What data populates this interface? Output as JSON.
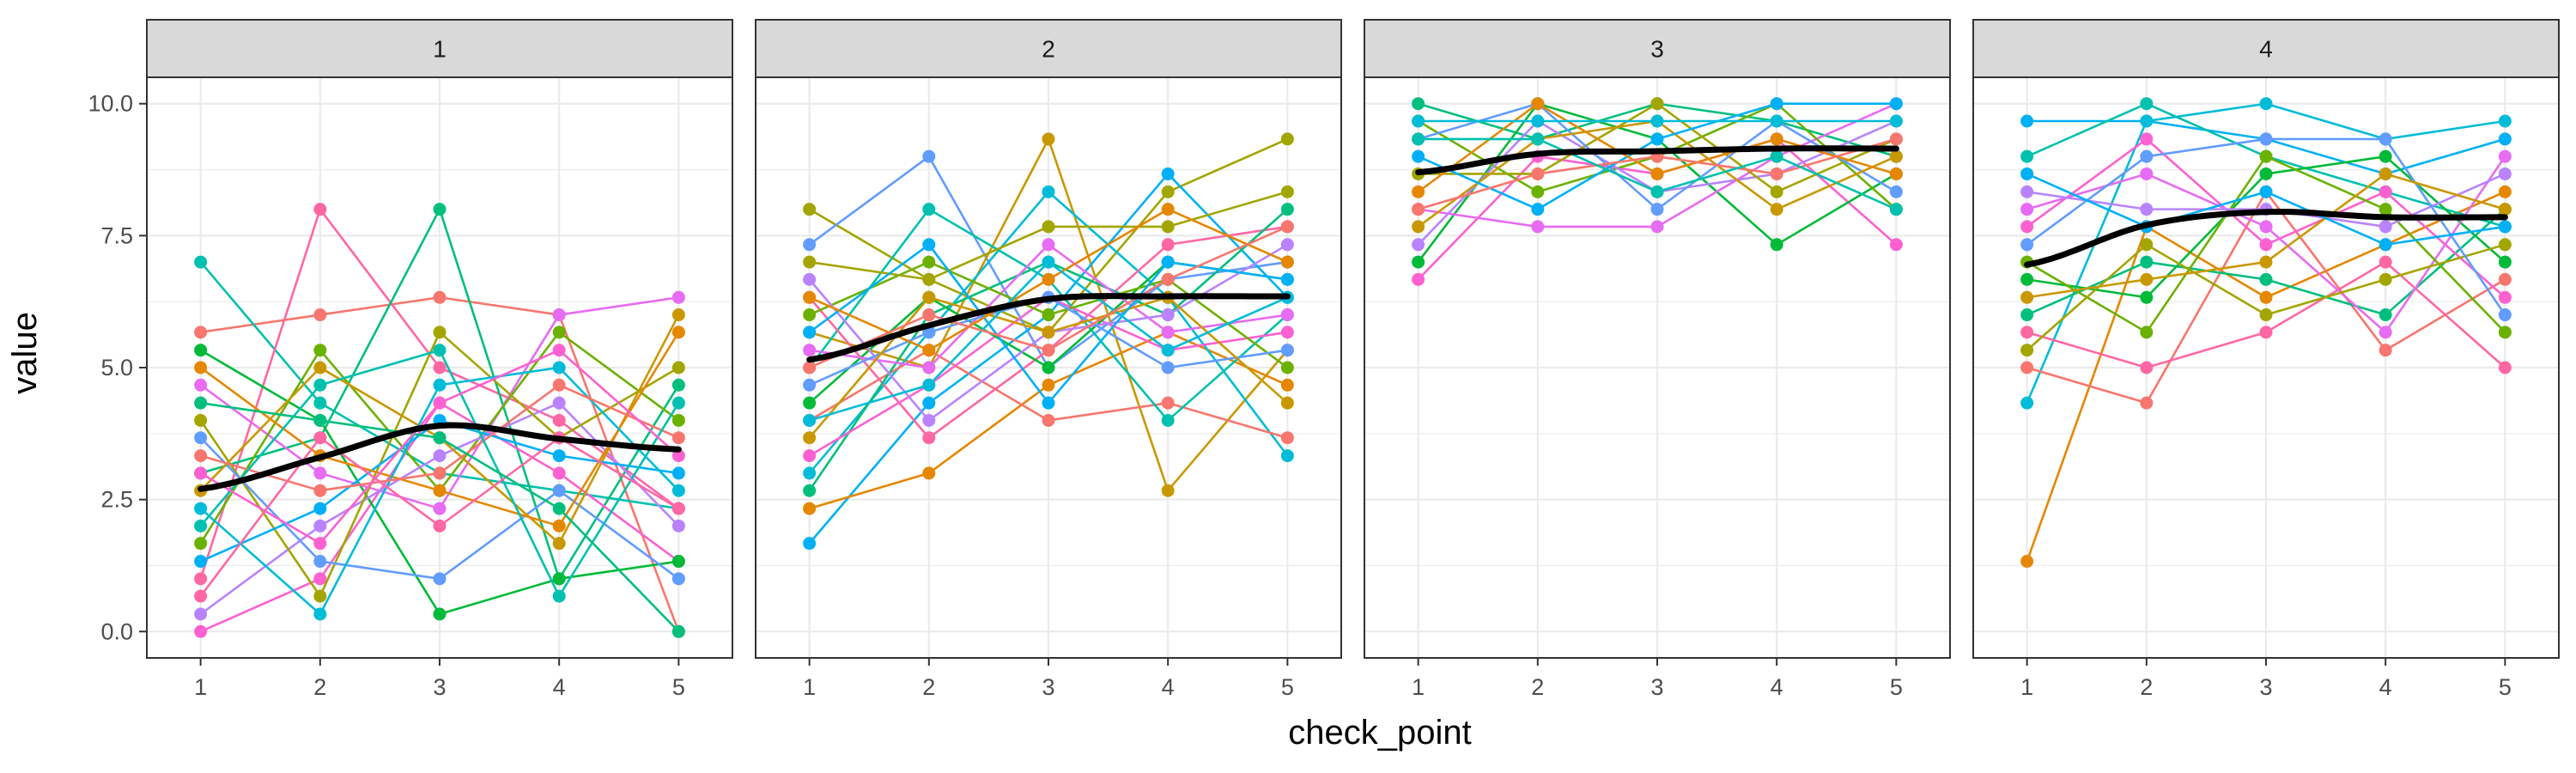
{
  "chart_data": {
    "type": "line",
    "facet_variable": "",
    "xlabel": "check_point",
    "ylabel": "value",
    "x_ticks": [
      "1",
      "2",
      "3",
      "4",
      "5"
    ],
    "y_ticks": [
      "0.0",
      "2.5",
      "5.0",
      "7.5",
      "10.0"
    ],
    "y_tick_values": [
      0,
      2.5,
      5,
      7.5,
      10
    ],
    "xlim": [
      0.55,
      5.45
    ],
    "ylim": [
      -0.5,
      10.5
    ],
    "grid": true,
    "legend": "none",
    "smooth_color": "#000000",
    "palette": [
      "#F8766D",
      "#E58700",
      "#C99800",
      "#A3A500",
      "#6BB100",
      "#00BA38",
      "#00BF7D",
      "#00C0AF",
      "#00BCD8",
      "#00B0F6",
      "#619CFF",
      "#B983FF",
      "#E76BF3",
      "#FD61D1",
      "#FF67A4"
    ],
    "facets": [
      {
        "label": "1",
        "smooth": [
          2.7,
          3.3,
          3.9,
          3.65,
          3.45
        ],
        "series": [
          [
            5.67,
            6.0,
            6.33,
            6.0,
            0.0
          ],
          [
            7.0,
            4.33,
            3.0,
            2.67,
            2.33
          ],
          [
            1.0,
            8.0,
            5.0,
            4.0,
            2.33
          ],
          [
            3.0,
            3.67,
            8.0,
            1.0,
            4.67
          ],
          [
            0.0,
            1.0,
            4.33,
            3.0,
            1.33
          ],
          [
            5.33,
            4.0,
            0.33,
            1.0,
            1.33
          ],
          [
            4.67,
            3.0,
            2.33,
            6.0,
            6.33
          ],
          [
            1.67,
            5.33,
            2.67,
            5.67,
            4.0
          ],
          [
            0.33,
            2.0,
            3.33,
            4.33,
            2.0
          ],
          [
            4.0,
            0.67,
            5.67,
            3.67,
            5.0
          ],
          [
            3.67,
            1.33,
            1.0,
            2.67,
            1.0
          ],
          [
            2.67,
            5.0,
            3.67,
            1.67,
            6.0
          ],
          [
            1.33,
            2.33,
            4.0,
            3.33,
            3.0
          ],
          [
            5.0,
            3.33,
            2.67,
            2.0,
            5.67
          ],
          [
            2.33,
            0.33,
            4.67,
            5.0,
            2.67
          ],
          [
            3.33,
            2.67,
            3.0,
            4.67,
            3.67
          ],
          [
            2.0,
            4.67,
            5.33,
            0.67,
            4.33
          ],
          [
            0.67,
            3.67,
            2.0,
            3.67,
            2.33
          ],
          [
            4.33,
            4.0,
            3.67,
            2.33,
            0.0
          ],
          [
            3.0,
            1.67,
            4.33,
            5.33,
            3.33
          ]
        ]
      },
      {
        "label": "2",
        "smooth": [
          5.15,
          5.8,
          6.3,
          6.35,
          6.35
        ],
        "series": [
          [
            8.0,
            6.67,
            5.67,
            8.33,
            9.33
          ],
          [
            7.33,
            9.0,
            5.0,
            6.67,
            7.0
          ],
          [
            5.67,
            5.0,
            9.33,
            2.67,
            5.33
          ],
          [
            1.67,
            4.33,
            6.0,
            8.67,
            6.33
          ],
          [
            2.33,
            3.0,
            4.67,
            5.67,
            4.67
          ],
          [
            3.0,
            5.67,
            8.33,
            6.33,
            3.33
          ],
          [
            4.0,
            5.33,
            4.0,
            4.33,
            3.67
          ],
          [
            5.0,
            8.0,
            6.67,
            4.0,
            6.0
          ],
          [
            6.33,
            3.67,
            5.33,
            7.33,
            7.67
          ],
          [
            2.67,
            6.0,
            7.0,
            6.0,
            8.0
          ],
          [
            3.33,
            4.67,
            6.33,
            5.33,
            5.67
          ],
          [
            4.33,
            6.33,
            5.0,
            7.0,
            6.67
          ],
          [
            5.33,
            5.0,
            7.33,
            5.67,
            6.0
          ],
          [
            6.0,
            7.0,
            6.0,
            6.67,
            5.0
          ],
          [
            6.67,
            4.0,
            5.67,
            6.0,
            7.33
          ],
          [
            7.0,
            6.67,
            7.67,
            7.67,
            8.33
          ],
          [
            4.67,
            5.67,
            6.33,
            5.0,
            5.33
          ],
          [
            3.67,
            6.33,
            5.67,
            6.33,
            4.33
          ],
          [
            5.67,
            7.33,
            4.33,
            7.0,
            6.67
          ],
          [
            6.33,
            5.33,
            6.67,
            8.0,
            7.0
          ],
          [
            4.0,
            4.67,
            7.0,
            5.33,
            6.33
          ],
          [
            5.0,
            6.0,
            5.33,
            6.67,
            7.67
          ]
        ]
      },
      {
        "label": "3",
        "smooth": [
          8.7,
          9.05,
          9.1,
          9.15,
          9.15
        ],
        "series": [
          [
            10.0,
            9.33,
            10.0,
            9.67,
            9.0
          ],
          [
            6.67,
            9.0,
            8.67,
            9.33,
            7.33
          ],
          [
            7.0,
            10.0,
            9.33,
            7.33,
            8.67
          ],
          [
            8.0,
            7.67,
            7.67,
            9.0,
            10.0
          ],
          [
            9.67,
            8.33,
            9.0,
            10.0,
            8.0
          ],
          [
            7.33,
            9.67,
            8.33,
            8.67,
            9.67
          ],
          [
            8.67,
            8.67,
            10.0,
            8.33,
            9.33
          ],
          [
            9.33,
            10.0,
            8.0,
            9.67,
            8.33
          ],
          [
            7.67,
            9.33,
            9.67,
            8.0,
            9.0
          ],
          [
            9.0,
            8.0,
            9.33,
            10.0,
            10.0
          ],
          [
            8.33,
            10.0,
            8.67,
            9.33,
            8.67
          ],
          [
            9.67,
            9.67,
            9.67,
            9.67,
            9.67
          ],
          [
            8.0,
            8.67,
            9.0,
            8.67,
            9.33
          ],
          [
            9.33,
            9.33,
            8.33,
            9.0,
            8.0
          ]
        ]
      },
      {
        "label": "4",
        "smooth": [
          6.95,
          7.7,
          7.95,
          7.85,
          7.85
        ],
        "series": [
          [
            9.67,
            9.67,
            9.33,
            8.67,
            9.33
          ],
          [
            1.33,
            7.67,
            6.33,
            7.33,
            8.33
          ],
          [
            4.33,
            9.67,
            10.0,
            9.33,
            9.67
          ],
          [
            5.0,
            4.33,
            8.33,
            5.33,
            6.67
          ],
          [
            9.0,
            10.0,
            9.0,
            8.33,
            7.67
          ],
          [
            5.67,
            5.0,
            5.67,
            7.0,
            5.0
          ],
          [
            6.0,
            7.0,
            6.67,
            6.0,
            8.0
          ],
          [
            7.67,
            9.33,
            7.33,
            8.33,
            6.33
          ],
          [
            6.67,
            6.33,
            8.67,
            9.0,
            7.0
          ],
          [
            8.0,
            8.67,
            7.67,
            5.67,
            9.0
          ],
          [
            7.0,
            5.67,
            9.0,
            8.0,
            5.67
          ],
          [
            8.33,
            8.0,
            8.0,
            7.67,
            8.67
          ],
          [
            5.33,
            7.33,
            6.0,
            6.67,
            7.33
          ],
          [
            7.33,
            9.0,
            9.33,
            9.33,
            6.0
          ],
          [
            6.33,
            6.67,
            7.0,
            8.67,
            8.0
          ],
          [
            8.67,
            7.67,
            8.33,
            7.33,
            7.67
          ]
        ]
      }
    ]
  }
}
